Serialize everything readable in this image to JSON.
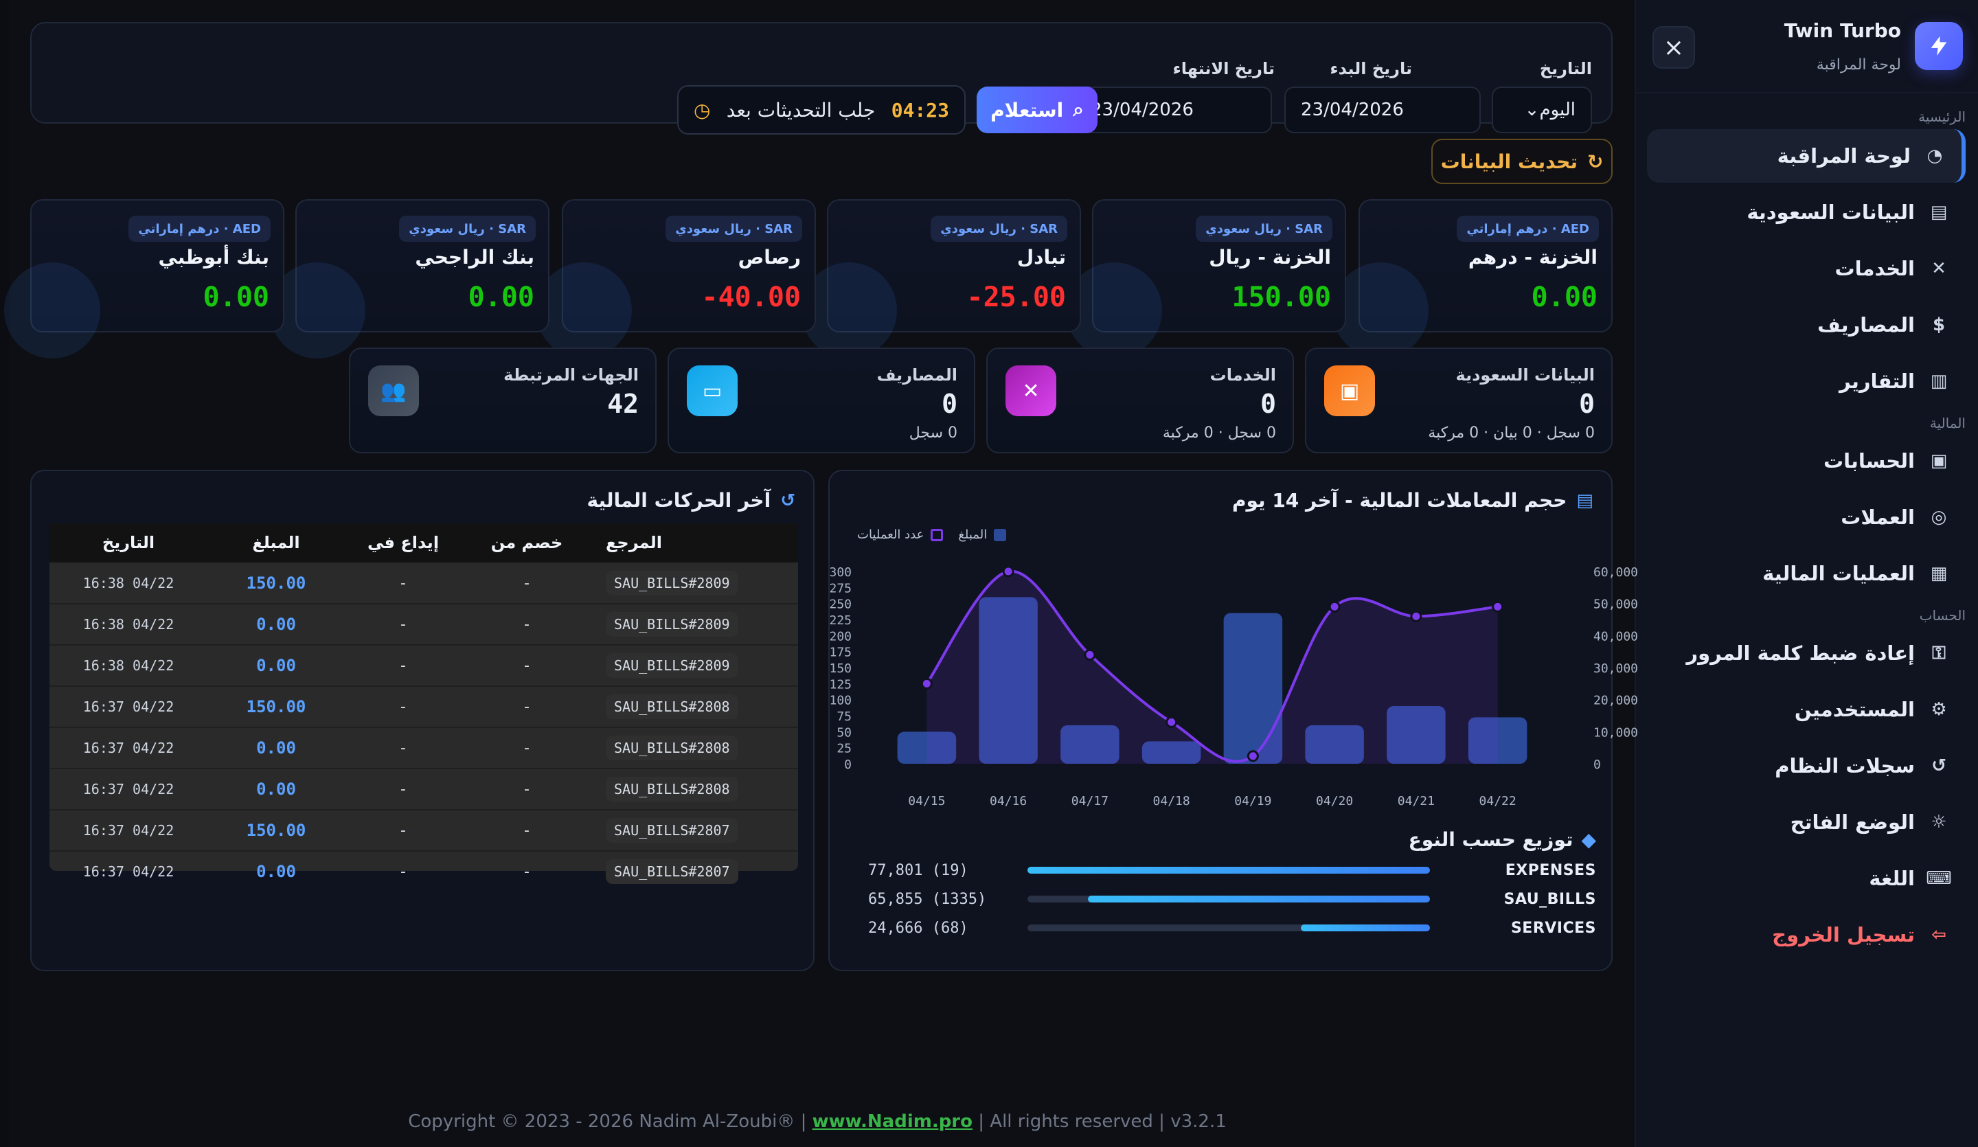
{
  "sidebar": {
    "brand_title": "Twin Turbo",
    "brand_subtitle": "لوحة المراقبة",
    "section_main": "الرئيسية",
    "section_finance": "المالية",
    "section_account": "الحساب",
    "items": [
      {
        "label": "لوحة المراقبة",
        "icon": "dashboard-icon",
        "active": true
      },
      {
        "label": "البيانات السعودية",
        "icon": "document-icon",
        "active": false
      },
      {
        "label": "الخدمات",
        "icon": "tools-icon",
        "active": false
      },
      {
        "label": "المصاريف",
        "icon": "money-bag-icon",
        "active": false
      },
      {
        "label": "التقارير",
        "icon": "chart-icon",
        "active": false
      },
      {
        "label": "الحسابات",
        "icon": "wallet-icon",
        "active": false
      },
      {
        "label": "العملات",
        "icon": "coins-icon",
        "active": false
      },
      {
        "label": "العمليات المالية",
        "icon": "cash-icon",
        "active": false
      },
      {
        "label": "إعادة ضبط كلمة المرور",
        "icon": "key-icon",
        "active": false
      },
      {
        "label": "المستخدمين",
        "icon": "users-icon",
        "active": false
      },
      {
        "label": "سجلات النظام",
        "icon": "history-icon",
        "active": false
      },
      {
        "label": "الوضع الفاتح",
        "icon": "sun-icon",
        "active": false
      },
      {
        "label": "اللغة",
        "icon": "language-icon",
        "active": false
      },
      {
        "label": "تسجيل الخروج",
        "icon": "logout-icon",
        "active": false
      }
    ],
    "close_label": "×"
  },
  "filters": {
    "date_label": "التاريخ",
    "date_value": "اليوم",
    "start_label": "تاريخ البدء",
    "start_value": "23/04/2026",
    "end_label": "تاريخ الانتهاء",
    "end_value": "23/04/2026",
    "query_label": "استعلام",
    "countdown_text": "جلب التحديثات بعد",
    "countdown_time": "04:23"
  },
  "refresh_label": "تحديث البيانات",
  "balances": [
    {
      "currency": "AED · درهم إماراتي",
      "title": "الخزنة - درهم",
      "amount": "0.00",
      "tone": "green"
    },
    {
      "currency": "SAR · ريال سعودي",
      "title": "الخزنة - ريال",
      "amount": "150.00",
      "tone": "green"
    },
    {
      "currency": "SAR · ريال سعودي",
      "title": "تبادل",
      "amount": "25.00-",
      "tone": "red"
    },
    {
      "currency": "SAR · ريال سعودي",
      "title": "رصاص",
      "amount": "40.00-",
      "tone": "red"
    },
    {
      "currency": "SAR · ريال سعودي",
      "title": "بنك الراجحي",
      "amount": "0.00",
      "tone": "green"
    },
    {
      "currency": "AED · درهم إماراتي",
      "title": "بنك أبوظبي",
      "amount": "0.00",
      "tone": "green"
    }
  ],
  "stats": [
    {
      "title": "البيانات السعودية",
      "value": "0",
      "sub": "0 سجل · 0 بيان · 0 مركبة",
      "icon": "document-icon",
      "color": "#f97316"
    },
    {
      "title": "الخدمات",
      "value": "0",
      "sub": "0 سجل · 0 مركبة",
      "icon": "tools-icon",
      "color": "#c026d3"
    },
    {
      "title": "المصاريف",
      "value": "0",
      "sub": "0 سجل",
      "icon": "wallet-icon",
      "color": "#0ea5e9"
    },
    {
      "title": "الجهات المرتبطة",
      "value": "42",
      "sub": "",
      "icon": "users-icon",
      "color": "#374151"
    }
  ],
  "transactions": {
    "title": "آخر الحركات المالية",
    "columns": [
      "المرجع",
      "خصم من",
      "إيداع في",
      "المبلغ",
      "التاريخ"
    ],
    "rows": [
      {
        "ref": "SAU_BILLS#2809",
        "debit": "-",
        "credit": "-",
        "amount": "150.00",
        "date": "04/22 16:38"
      },
      {
        "ref": "SAU_BILLS#2809",
        "debit": "-",
        "credit": "-",
        "amount": "0.00",
        "date": "04/22 16:38"
      },
      {
        "ref": "SAU_BILLS#2809",
        "debit": "-",
        "credit": "-",
        "amount": "0.00",
        "date": "04/22 16:38"
      },
      {
        "ref": "SAU_BILLS#2808",
        "debit": "-",
        "credit": "-",
        "amount": "150.00",
        "date": "04/22 16:37"
      },
      {
        "ref": "SAU_BILLS#2808",
        "debit": "-",
        "credit": "-",
        "amount": "0.00",
        "date": "04/22 16:37"
      },
      {
        "ref": "SAU_BILLS#2808",
        "debit": "-",
        "credit": "-",
        "amount": "0.00",
        "date": "04/22 16:37"
      },
      {
        "ref": "SAU_BILLS#2807",
        "debit": "-",
        "credit": "-",
        "amount": "150.00",
        "date": "04/22 16:37"
      },
      {
        "ref": "SAU_BILLS#2807",
        "debit": "-",
        "credit": "-",
        "amount": "0.00",
        "date": "04/22 16:37"
      }
    ]
  },
  "volume": {
    "title": "حجم المعاملات المالية - آخر 14 يوم",
    "legend_amount": "المبلغ",
    "legend_count": "عدد العمليات"
  },
  "distribution": {
    "title": "توزيع حسب النوع",
    "items": [
      {
        "label": "EXPENSES",
        "value": "(19) 77,801",
        "fill": 1.0
      },
      {
        "label": "SAU_BILLS",
        "value": "(1335) 65,855",
        "fill": 0.85
      },
      {
        "label": "SERVICES",
        "value": "(68) 24,666",
        "fill": 0.32
      }
    ]
  },
  "footer": {
    "prefix": "Copyright © 2023 - 2026 Nadim Al-Zoubi® |",
    "link": "www.Nadim.pro",
    "suffix": "| All rights reserved | v3.2.1"
  },
  "chart_data": {
    "type": "bar",
    "categories": [
      "04/15",
      "04/16",
      "04/17",
      "04/18",
      "04/19",
      "04/20",
      "04/21",
      "04/22"
    ],
    "series": [
      {
        "name": "المبلغ",
        "type": "bar",
        "axis": "left",
        "values": [
          10000,
          52000,
          12000,
          7000,
          47000,
          12000,
          18000,
          14500
        ]
      },
      {
        "name": "عدد العمليات",
        "type": "line",
        "axis": "right",
        "values": [
          125,
          300,
          170,
          65,
          12,
          245,
          230,
          245
        ]
      }
    ],
    "ylim_left": [
      0,
      60000
    ],
    "ylim_right": [
      0,
      300
    ],
    "ticks_left": [
      0,
      10000,
      20000,
      30000,
      40000,
      50000,
      60000
    ],
    "ticks_right": [
      0,
      25,
      50,
      75,
      100,
      125,
      150,
      175,
      200,
      225,
      250,
      275,
      300
    ],
    "grid": false,
    "legend_position": "top-left"
  }
}
